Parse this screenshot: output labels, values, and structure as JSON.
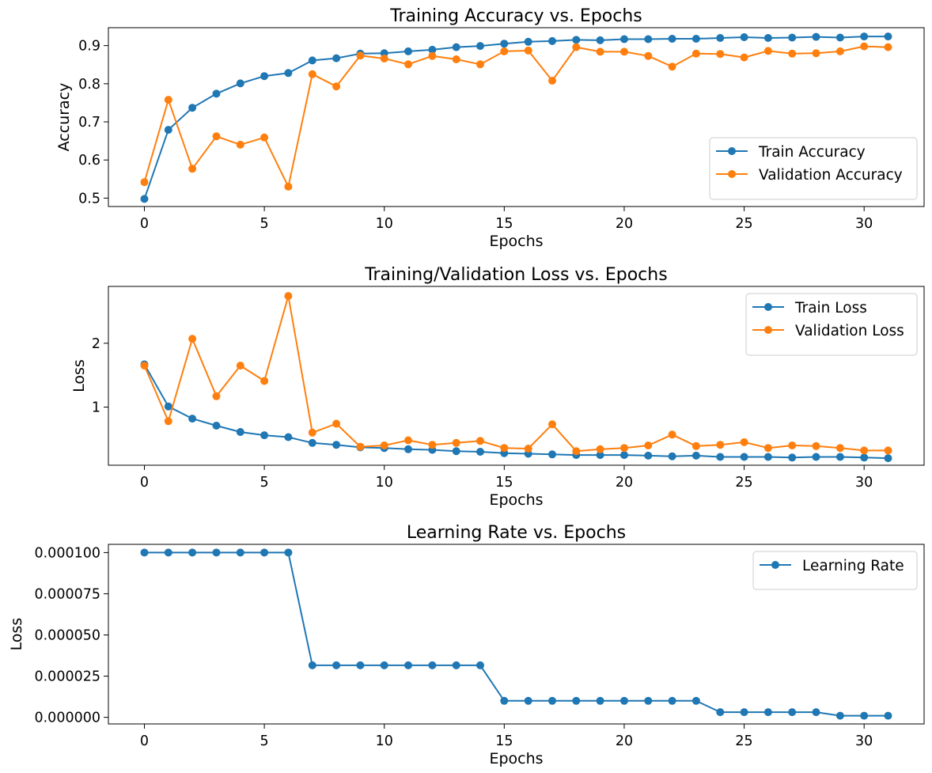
{
  "chart_data": [
    {
      "type": "line",
      "title": "Training Accuracy vs. Epochs",
      "xlabel": "Epochs",
      "ylabel": "Accuracy",
      "xlim": [
        -1.5,
        32.5
      ],
      "ylim": [
        0.478,
        0.947
      ],
      "xticks": [
        0,
        5,
        10,
        15,
        20,
        25,
        30
      ],
      "xtick_labels": [
        "0",
        "5",
        "10",
        "15",
        "20",
        "25",
        "30"
      ],
      "yticks": [
        0.5,
        0.6,
        0.7,
        0.8,
        0.9
      ],
      "ytick_labels": [
        "0.5",
        "0.6",
        "0.7",
        "0.8",
        "0.9"
      ],
      "legend_position": "lower-right",
      "grid": false,
      "x": [
        0,
        1,
        2,
        3,
        4,
        5,
        6,
        7,
        8,
        9,
        10,
        11,
        12,
        13,
        14,
        15,
        16,
        17,
        18,
        19,
        20,
        21,
        22,
        23,
        24,
        25,
        26,
        27,
        28,
        29,
        30,
        31
      ],
      "series": [
        {
          "name": "Train Accuracy",
          "color": "#1f77b4",
          "values": [
            0.498,
            0.679,
            0.737,
            0.774,
            0.801,
            0.82,
            0.828,
            0.861,
            0.867,
            0.879,
            0.88,
            0.885,
            0.889,
            0.896,
            0.899,
            0.905,
            0.91,
            0.912,
            0.915,
            0.914,
            0.917,
            0.917,
            0.918,
            0.918,
            0.92,
            0.922,
            0.92,
            0.921,
            0.923,
            0.921,
            0.924,
            0.924
          ]
        },
        {
          "name": "Validation Accuracy",
          "color": "#ff7f0e",
          "values": [
            0.542,
            0.758,
            0.577,
            0.662,
            0.64,
            0.659,
            0.53,
            0.825,
            0.793,
            0.874,
            0.866,
            0.851,
            0.873,
            0.864,
            0.851,
            0.885,
            0.887,
            0.808,
            0.896,
            0.884,
            0.884,
            0.873,
            0.845,
            0.879,
            0.878,
            0.869,
            0.886,
            0.879,
            0.88,
            0.885,
            0.898,
            0.896
          ]
        }
      ]
    },
    {
      "type": "line",
      "title": "Training/Validation Loss vs. Epochs",
      "xlabel": "Epochs",
      "ylabel": "Loss",
      "xlim": [
        -1.5,
        32.5
      ],
      "ylim": [
        0.09,
        2.89
      ],
      "xticks": [
        0,
        5,
        10,
        15,
        20,
        25,
        30
      ],
      "xtick_labels": [
        "0",
        "5",
        "10",
        "15",
        "20",
        "25",
        "30"
      ],
      "yticks": [
        1,
        2
      ],
      "ytick_labels": [
        "1",
        "2"
      ],
      "legend_position": "upper-right",
      "grid": false,
      "x": [
        0,
        1,
        2,
        3,
        4,
        5,
        6,
        7,
        8,
        9,
        10,
        11,
        12,
        13,
        14,
        15,
        16,
        17,
        18,
        19,
        20,
        21,
        22,
        23,
        24,
        25,
        26,
        27,
        28,
        29,
        30,
        31
      ],
      "series": [
        {
          "name": "Train Loss",
          "color": "#1f77b4",
          "values": [
            1.67,
            1.01,
            0.82,
            0.71,
            0.61,
            0.56,
            0.53,
            0.44,
            0.41,
            0.37,
            0.36,
            0.34,
            0.33,
            0.31,
            0.3,
            0.28,
            0.27,
            0.26,
            0.25,
            0.25,
            0.25,
            0.24,
            0.23,
            0.24,
            0.22,
            0.22,
            0.22,
            0.21,
            0.22,
            0.22,
            0.21,
            0.2
          ]
        },
        {
          "name": "Validation Loss",
          "color": "#ff7f0e",
          "values": [
            1.65,
            0.78,
            2.07,
            1.17,
            1.65,
            1.41,
            2.74,
            0.6,
            0.74,
            0.38,
            0.4,
            0.48,
            0.41,
            0.44,
            0.47,
            0.36,
            0.35,
            0.73,
            0.31,
            0.34,
            0.36,
            0.4,
            0.57,
            0.39,
            0.41,
            0.45,
            0.36,
            0.4,
            0.39,
            0.36,
            0.32,
            0.32
          ]
        }
      ]
    },
    {
      "type": "line",
      "title": "Learning Rate vs. Epochs",
      "xlabel": "Epochs",
      "ylabel": "Loss",
      "xlim": [
        -1.5,
        32.5
      ],
      "ylim": [
        -4e-06,
        0.000105
      ],
      "xticks": [
        0,
        5,
        10,
        15,
        20,
        25,
        30
      ],
      "xtick_labels": [
        "0",
        "5",
        "10",
        "15",
        "20",
        "25",
        "30"
      ],
      "yticks": [
        0.0,
        2.5e-05,
        5e-05,
        7.5e-05,
        0.0001
      ],
      "ytick_labels": [
        "0.000000",
        "0.000025",
        "0.000050",
        "0.000075",
        "0.000100"
      ],
      "legend_position": "upper-right",
      "grid": false,
      "x": [
        0,
        1,
        2,
        3,
        4,
        5,
        6,
        7,
        8,
        9,
        10,
        11,
        12,
        13,
        14,
        15,
        16,
        17,
        18,
        19,
        20,
        21,
        22,
        23,
        24,
        25,
        26,
        27,
        28,
        29,
        30,
        31
      ],
      "series": [
        {
          "name": "Learning Rate",
          "color": "#1f77b4",
          "values": [
            0.0001,
            0.0001,
            0.0001,
            0.0001,
            0.0001,
            0.0001,
            0.0001,
            3.16e-05,
            3.16e-05,
            3.16e-05,
            3.16e-05,
            3.16e-05,
            3.16e-05,
            3.16e-05,
            3.16e-05,
            1e-05,
            1e-05,
            1e-05,
            1e-05,
            1e-05,
            1e-05,
            1e-05,
            1e-05,
            1e-05,
            3.16e-06,
            3.16e-06,
            3.16e-06,
            3.16e-06,
            3.16e-06,
            1e-06,
            1e-06,
            1e-06
          ]
        }
      ]
    }
  ]
}
